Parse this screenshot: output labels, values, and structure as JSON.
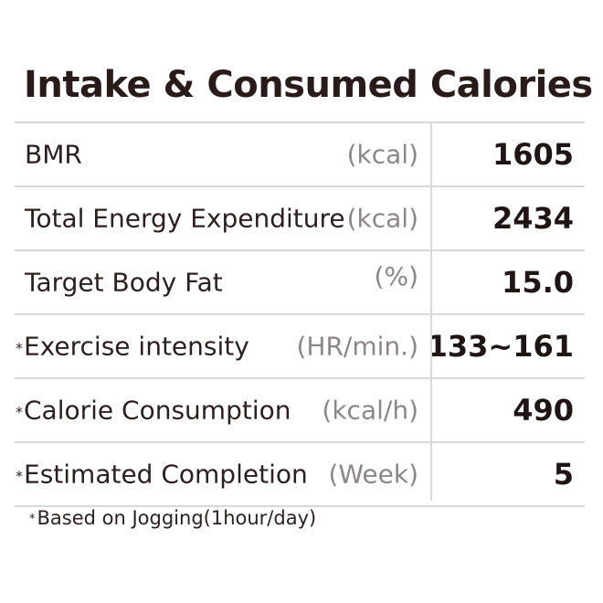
{
  "title": "Intake & Consumed Calories",
  "rows": [
    {
      "label": "BMR",
      "unit": "(kcal)",
      "value": "1605",
      "starred": false
    },
    {
      "label": "Total Energy Expenditure",
      "unit": "(kcal)",
      "value": "2434",
      "starred": false
    },
    {
      "label": "Target Body Fat",
      "unit": "(%)",
      "value": "15.0",
      "starred": false
    },
    {
      "label": "Exercise intensity",
      "unit": "(HR/min.)",
      "value": "133~161",
      "starred": true
    },
    {
      "label": "Calorie Consumption",
      "unit": "(kcal/h)",
      "value": "490",
      "starred": true
    },
    {
      "label": "Estimated Completion",
      "unit": "(Week)",
      "value": "5",
      "starred": true
    }
  ],
  "star_symbol": "*",
  "footnote": "Based on Jogging(1hour/day)",
  "colors": {
    "text": "#2b1f1f",
    "unit": "#8c8686",
    "rule": "#d8d8d8"
  }
}
